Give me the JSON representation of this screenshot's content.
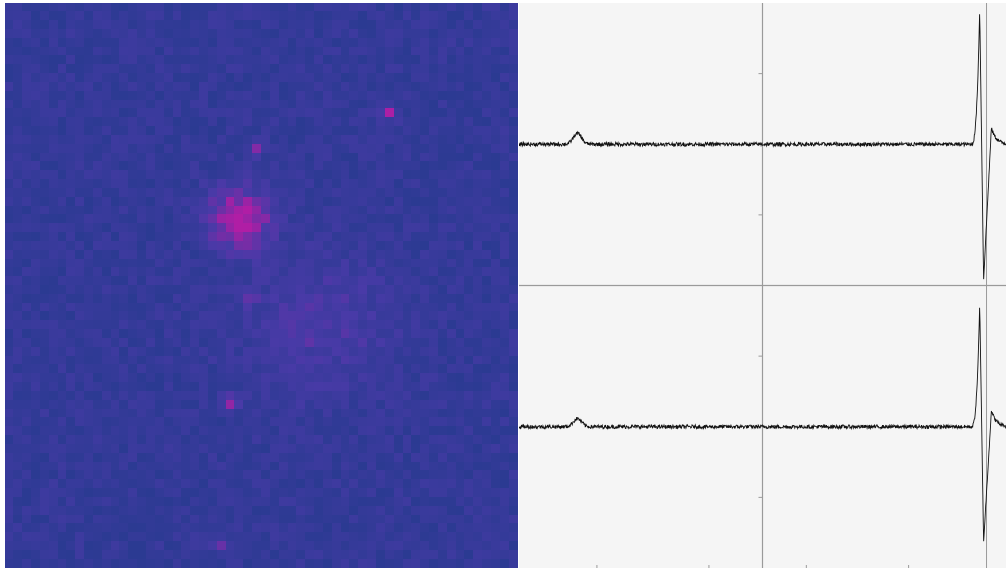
{
  "colors": {
    "heatmap_background": "#2b3a92",
    "heatmap_mid": "#4a3aa8",
    "heatmap_hot": "#b01ea5",
    "plot_background": "#f5f5f5",
    "divider": "#9a9a9a",
    "trace": "#111111"
  },
  "heatmap": {
    "grid_rows": 64,
    "grid_cols": 58,
    "hotspots": [
      {
        "col": 26,
        "row": 24,
        "strength": 1.0,
        "spread": 2.4
      },
      {
        "col": 43,
        "row": 12,
        "strength": 0.95,
        "spread": 0.6
      },
      {
        "col": 28,
        "row": 16,
        "strength": 0.7,
        "spread": 0.6
      },
      {
        "col": 25,
        "row": 45,
        "strength": 0.85,
        "spread": 0.6
      },
      {
        "col": 27,
        "row": 33,
        "strength": 0.55,
        "spread": 0.6
      },
      {
        "col": 24,
        "row": 61,
        "strength": 0.6,
        "spread": 0.6
      },
      {
        "col": 35,
        "row": 36,
        "strength": 0.3,
        "spread": 6.0
      }
    ]
  },
  "traces": [
    {
      "name": "trace-top",
      "baseline": 0.0,
      "bump": {
        "position": 0.12,
        "height": 0.08,
        "width": 0.012
      },
      "spike": {
        "position": 0.94,
        "peak": 1.0,
        "trough": -1.0
      }
    },
    {
      "name": "trace-bottom",
      "baseline": 0.0,
      "bump": {
        "position": 0.12,
        "height": 0.06,
        "width": 0.012
      },
      "spike": {
        "position": 0.94,
        "peak": 0.9,
        "trough": -0.85
      }
    }
  ]
}
